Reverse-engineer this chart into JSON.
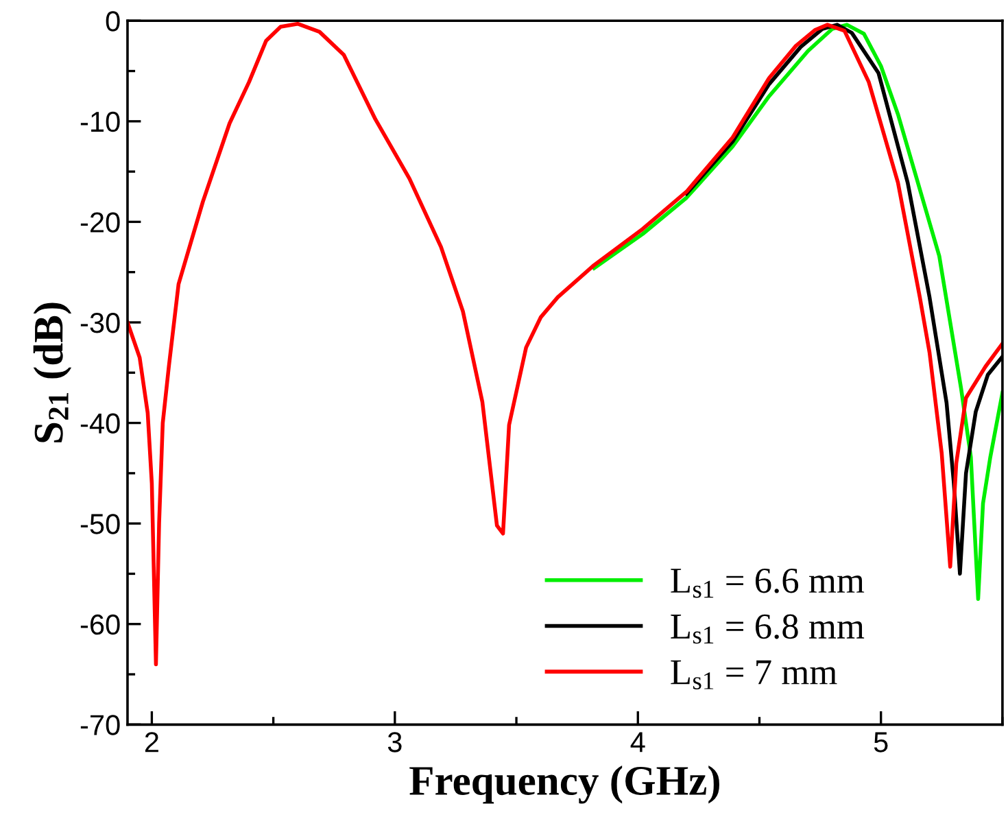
{
  "chart_data": {
    "type": "line",
    "xlabel": "Frequency (GHz)",
    "ylabel": "S$_{21}$ (dB)",
    "xlim": [
      1.9,
      5.5
    ],
    "xticks": [
      2,
      3,
      4,
      5
    ],
    "ylim": [
      -70,
      0
    ],
    "yticks": [
      -70,
      -60,
      -50,
      -40,
      -30,
      -20,
      -10,
      0
    ],
    "grid": false,
    "legend": "bottom right",
    "marker": "none",
    "line_style": "solid",
    "series": [
      {
        "name": "L$_{s1}$ = 6.6 mm",
        "color": "#00ee00",
        "x": [
          3.82,
          4.02,
          4.2,
          4.39,
          4.54,
          4.7,
          4.8,
          4.86,
          4.93,
          5.0,
          5.07,
          5.24,
          5.33,
          5.37,
          5.4,
          5.42,
          5.45,
          5.5
        ],
        "values": [
          -24.6,
          -21.2,
          -17.6,
          -12.5,
          -7.5,
          -3,
          -0.8,
          -0.4,
          -1.3,
          -4.5,
          -9.3,
          -23.4,
          -36.6,
          -43.4,
          -57.5,
          -48,
          -43.4,
          -37
        ]
      },
      {
        "name": "L$_{s1}$ = 6.8 mm",
        "color": "#000000",
        "x": [
          4.2,
          4.39,
          4.54,
          4.67,
          4.76,
          4.82,
          4.88,
          4.99,
          5.11,
          5.2,
          5.27,
          5.3,
          5.325,
          5.35,
          5.39,
          5.44,
          5.5
        ],
        "values": [
          -17.2,
          -12,
          -6.3,
          -2.6,
          -0.8,
          -0.4,
          -1.2,
          -5.2,
          -16.1,
          -27.5,
          -38,
          -46,
          -55,
          -45,
          -38.9,
          -35.2,
          -33.4
        ]
      },
      {
        "name": "L$_{s1}$ = 7 mm",
        "color": "#ff0000",
        "x": [
          1.9,
          1.95,
          1.983,
          2.0,
          2.017,
          2.03,
          2.045,
          2.07,
          2.11,
          2.21,
          2.32,
          2.4,
          2.47,
          2.53,
          2.6,
          2.69,
          2.79,
          2.92,
          3.06,
          3.19,
          3.28,
          3.36,
          3.42,
          3.445,
          3.47,
          3.54,
          3.6,
          3.67,
          3.82,
          4.02,
          4.2,
          4.39,
          4.54,
          4.65,
          4.73,
          4.78,
          4.85,
          4.95,
          5.07,
          5.16,
          5.2,
          5.25,
          5.285,
          5.31,
          5.35,
          5.43,
          5.5
        ],
        "values": [
          -30,
          -33.5,
          -39,
          -46,
          -64,
          -50,
          -40,
          -34.4,
          -26.2,
          -18,
          -10.2,
          -6.1,
          -2,
          -0.6,
          -0.3,
          -1.1,
          -3.4,
          -9.8,
          -15.7,
          -22.5,
          -28.9,
          -37.9,
          -50.2,
          -51,
          -40.2,
          -32.5,
          -29.5,
          -27.5,
          -24.3,
          -20.7,
          -17,
          -11.6,
          -5.7,
          -2.5,
          -0.9,
          -0.4,
          -1,
          -6.1,
          -16.1,
          -27.5,
          -33,
          -43,
          -54.3,
          -44,
          -37.5,
          -34.4,
          -32.1
        ]
      }
    ]
  }
}
